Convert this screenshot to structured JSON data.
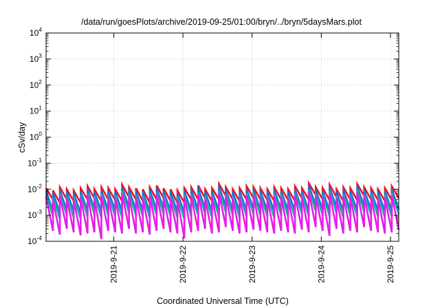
{
  "chart_data": {
    "type": "line",
    "title": "/data/run/goesPlots/archive/2019-09-25/01:00/bryn/../bryn/5daysMars.plot",
    "xlabel": "Coordinated Universal Time (UTC)",
    "ylabel": "cSv/day",
    "y_scale": "log",
    "ylim": [
      0.0001,
      10000
    ],
    "y_ticks": [
      {
        "base": "10",
        "exp": "-4"
      },
      {
        "base": "10",
        "exp": "-3"
      },
      {
        "base": "10",
        "exp": "-2"
      },
      {
        "base": "10",
        "exp": "-1"
      },
      {
        "base": "10",
        "exp": "0"
      },
      {
        "base": "10",
        "exp": "1"
      },
      {
        "base": "10",
        "exp": "2"
      },
      {
        "base": "10",
        "exp": "3"
      },
      {
        "base": "10",
        "exp": "4"
      }
    ],
    "xlim_days": [
      20.02,
      25.12
    ],
    "x_ticks": [
      {
        "label": "2019-9-21",
        "day": 21
      },
      {
        "label": "2019-9-22",
        "day": 22
      },
      {
        "label": "2019-9-23",
        "day": 23
      },
      {
        "label": "2019-9-24",
        "day": 24
      },
      {
        "label": "2019-9-25",
        "day": 25
      }
    ],
    "grid": true,
    "sawtooth_period_days": 0.1,
    "series": [
      {
        "color": "#e8141e",
        "peaks": [
          0.011,
          0.009,
          0.012,
          0.01,
          0.009,
          0.011,
          0.013,
          0.01,
          0.012,
          0.011,
          0.01,
          0.015,
          0.012,
          0.011,
          0.01,
          0.012,
          0.014,
          0.011,
          0.01,
          0.009,
          0.011,
          0.012,
          0.014,
          0.01,
          0.011,
          0.016,
          0.012,
          0.01,
          0.011,
          0.013,
          0.012,
          0.011,
          0.01,
          0.012,
          0.011,
          0.01,
          0.013,
          0.011,
          0.017,
          0.012,
          0.011,
          0.015,
          0.01,
          0.012,
          0.011,
          0.016,
          0.012,
          0.011,
          0.01,
          0.011,
          0.013
        ],
        "troughs": [
          0.004,
          0.003,
          0.004,
          0.0035,
          0.003,
          0.004,
          0.0045,
          0.0035,
          0.004,
          0.0038,
          0.0035,
          0.005,
          0.004,
          0.0035,
          0.003,
          0.004,
          0.0045,
          0.0035,
          0.003,
          0.003,
          0.004,
          0.004,
          0.0045,
          0.0035,
          0.004,
          0.0055,
          0.004,
          0.0035,
          0.004,
          0.0045,
          0.004,
          0.0038,
          0.0035,
          0.004,
          0.0038,
          0.0035,
          0.0045,
          0.004,
          0.006,
          0.004,
          0.0038,
          0.005,
          0.0035,
          0.004,
          0.0038,
          0.0055,
          0.004,
          0.0038,
          0.0035,
          0.0038,
          0.0045
        ]
      },
      {
        "color": "#1f6fe0",
        "peaks": [
          0.0085,
          0.0075,
          0.009,
          0.008,
          0.007,
          0.0085,
          0.01,
          0.008,
          0.009,
          0.0085,
          0.008,
          0.012,
          0.0095,
          0.0085,
          0.008,
          0.0095,
          0.011,
          0.0085,
          0.008,
          0.007,
          0.0085,
          0.0095,
          0.011,
          0.008,
          0.0085,
          0.013,
          0.0095,
          0.008,
          0.0085,
          0.01,
          0.0095,
          0.0085,
          0.008,
          0.0095,
          0.0085,
          0.008,
          0.01,
          0.0085,
          0.014,
          0.0095,
          0.0085,
          0.012,
          0.008,
          0.0095,
          0.0085,
          0.013,
          0.0095,
          0.0085,
          0.008,
          0.0085,
          0.01
        ],
        "troughs": [
          0.0015,
          0.0012,
          0.0016,
          0.0014,
          0.0012,
          0.0015,
          0.0018,
          0.0014,
          0.0016,
          0.0015,
          0.0014,
          0.002,
          0.0016,
          0.0015,
          0.0013,
          0.0016,
          0.0018,
          0.0014,
          0.0013,
          0.0012,
          0.0015,
          0.0016,
          0.0018,
          0.0014,
          0.0015,
          0.0022,
          0.0016,
          0.0014,
          0.0015,
          0.0017,
          0.0016,
          0.0015,
          0.0014,
          0.0016,
          0.0015,
          0.0014,
          0.0017,
          0.0015,
          0.0024,
          0.0016,
          0.0015,
          0.002,
          0.0014,
          0.0016,
          0.0015,
          0.0022,
          0.0016,
          0.0015,
          0.0014,
          0.0015,
          0.0017
        ]
      },
      {
        "color": "#1ab0a8",
        "peaks": [
          0.006,
          0.005,
          0.0065,
          0.0055,
          0.005,
          0.006,
          0.007,
          0.0055,
          0.0065,
          0.006,
          0.0055,
          0.0085,
          0.0065,
          0.006,
          0.0055,
          0.0065,
          0.0075,
          0.006,
          0.0055,
          0.005,
          0.006,
          0.0065,
          0.0075,
          0.0055,
          0.006,
          0.009,
          0.0065,
          0.0055,
          0.006,
          0.007,
          0.0065,
          0.006,
          0.0055,
          0.0065,
          0.006,
          0.0055,
          0.007,
          0.006,
          0.0095,
          0.0065,
          0.006,
          0.0085,
          0.0055,
          0.0065,
          0.006,
          0.009,
          0.0065,
          0.006,
          0.0055,
          0.006,
          0.007
        ],
        "troughs": [
          0.0009,
          0.0007,
          0.001,
          0.0008,
          0.0007,
          0.0009,
          0.0011,
          0.0008,
          0.001,
          0.0009,
          0.0008,
          0.0012,
          0.001,
          0.0009,
          0.0008,
          0.001,
          0.0011,
          0.0009,
          0.0008,
          0.0007,
          0.0009,
          0.001,
          0.0011,
          0.0008,
          0.0009,
          0.0013,
          0.001,
          0.0008,
          0.0009,
          0.0011,
          0.001,
          0.0009,
          0.0008,
          0.001,
          0.0009,
          0.0008,
          0.0011,
          0.0009,
          0.0014,
          0.001,
          0.0009,
          0.0012,
          0.0008,
          0.001,
          0.0009,
          0.0013,
          0.001,
          0.0009,
          0.0008,
          0.0009,
          0.0011
        ]
      },
      {
        "color": "#e61ee6",
        "peaks": [
          0.005,
          0.004,
          0.0055,
          0.0045,
          0.004,
          0.005,
          0.006,
          0.0045,
          0.0055,
          0.005,
          0.0045,
          0.007,
          0.0055,
          0.005,
          0.0045,
          0.0055,
          0.0065,
          0.005,
          0.0045,
          0.004,
          0.005,
          0.0055,
          0.0065,
          0.0045,
          0.005,
          0.0075,
          0.0055,
          0.0045,
          0.005,
          0.006,
          0.0055,
          0.005,
          0.0045,
          0.0055,
          0.005,
          0.0045,
          0.006,
          0.005,
          0.008,
          0.0055,
          0.005,
          0.007,
          0.0045,
          0.0055,
          0.005,
          0.0075,
          0.0055,
          0.005,
          0.0045,
          0.005,
          0.006
        ],
        "troughs": [
          0.00025,
          0.00018,
          0.0003,
          0.00022,
          0.00017,
          0.0002,
          0.00022,
          0.00012,
          0.00025,
          0.00022,
          0.0002,
          0.0003,
          0.0002,
          0.00022,
          0.00018,
          0.00025,
          0.0003,
          0.00022,
          0.0002,
          0.00013,
          0.00022,
          0.00025,
          0.0003,
          0.0002,
          0.00022,
          0.00035,
          0.00025,
          0.0002,
          0.00022,
          0.00028,
          0.00025,
          0.00022,
          0.0002,
          0.00025,
          0.00022,
          0.0002,
          0.00028,
          0.00022,
          0.00035,
          0.00025,
          0.00016,
          0.0003,
          0.0002,
          0.00025,
          0.00022,
          0.00035,
          0.00025,
          0.00022,
          0.0002,
          0.00022,
          0.00028
        ]
      }
    ]
  }
}
